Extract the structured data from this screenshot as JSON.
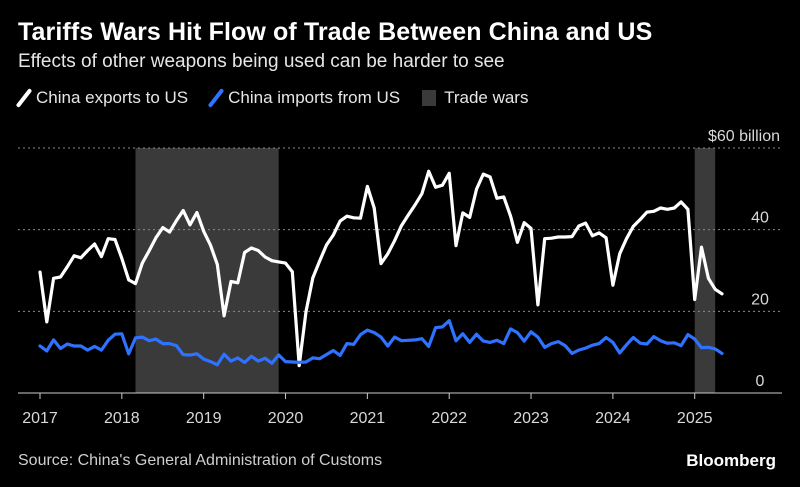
{
  "chart_data": {
    "type": "line",
    "title": "Tariffs Wars Hit Flow of Trade Between China and US",
    "subtitle": "Effects of other weapons being used can be harder to see",
    "xlabel": "",
    "ylabel": "",
    "xlim": [
      "2017-01",
      "2025-05"
    ],
    "ylim": [
      0,
      60
    ],
    "y_ticks": [
      0,
      20,
      40,
      60
    ],
    "y_tick_labels": [
      "0",
      "20",
      "40",
      "$60 billion"
    ],
    "x_tick_labels": [
      "2017",
      "2018",
      "2019",
      "2020",
      "2021",
      "2022",
      "2023",
      "2024",
      "2025"
    ],
    "grid": true,
    "legend_position": "top-left",
    "legend": [
      "China exports to US",
      "China imports from US",
      "Trade wars"
    ],
    "shaded_periods": [
      {
        "name": "Trade wars",
        "start": "2018-03",
        "end": "2019-12"
      },
      {
        "name": "Trade wars",
        "start": "2025-01",
        "end": "2025-04"
      }
    ],
    "dates": [
      "2017-01",
      "2017-02",
      "2017-03",
      "2017-04",
      "2017-05",
      "2017-06",
      "2017-07",
      "2017-08",
      "2017-09",
      "2017-10",
      "2017-11",
      "2017-12",
      "2018-01",
      "2018-02",
      "2018-03",
      "2018-04",
      "2018-05",
      "2018-06",
      "2018-07",
      "2018-08",
      "2018-09",
      "2018-10",
      "2018-11",
      "2018-12",
      "2019-01",
      "2019-02",
      "2019-03",
      "2019-04",
      "2019-05",
      "2019-06",
      "2019-07",
      "2019-08",
      "2019-09",
      "2019-10",
      "2019-11",
      "2019-12",
      "2020-01",
      "2020-02",
      "2020-03",
      "2020-04",
      "2020-05",
      "2020-06",
      "2020-07",
      "2020-08",
      "2020-09",
      "2020-10",
      "2020-11",
      "2020-12",
      "2021-01",
      "2021-02",
      "2021-03",
      "2021-04",
      "2021-05",
      "2021-06",
      "2021-07",
      "2021-08",
      "2021-09",
      "2021-10",
      "2021-11",
      "2021-12",
      "2022-01",
      "2022-02",
      "2022-03",
      "2022-04",
      "2022-05",
      "2022-06",
      "2022-07",
      "2022-08",
      "2022-09",
      "2022-10",
      "2022-11",
      "2022-12",
      "2023-01",
      "2023-02",
      "2023-03",
      "2023-04",
      "2023-05",
      "2023-06",
      "2023-07",
      "2023-08",
      "2023-09",
      "2023-10",
      "2023-11",
      "2023-12",
      "2024-01",
      "2024-02",
      "2024-03",
      "2024-04",
      "2024-05",
      "2024-06",
      "2024-07",
      "2024-08",
      "2024-09",
      "2024-10",
      "2024-11",
      "2024-12",
      "2025-01",
      "2025-02",
      "2025-03",
      "2025-04",
      "2025-05"
    ],
    "series": [
      {
        "name": "China exports to US",
        "color": "#ffffff",
        "values": [
          29.6,
          17.4,
          28.1,
          28.4,
          30.9,
          33.6,
          33.1,
          34.9,
          36.5,
          33.4,
          37.8,
          37.6,
          33.0,
          27.7,
          26.8,
          31.8,
          34.8,
          38.0,
          40.5,
          39.4,
          42.2,
          44.7,
          41.2,
          44.2,
          39.6,
          36.2,
          31.5,
          18.9,
          27.3,
          27.0,
          34.4,
          35.5,
          34.9,
          33.3,
          32.4,
          32.1,
          31.8,
          29.7,
          6.7,
          19.9,
          28.2,
          32.3,
          36.2,
          38.7,
          42.1,
          43.3,
          42.9,
          42.8,
          50.6,
          45.3,
          31.7,
          34.1,
          37.3,
          41.0,
          43.6,
          46.1,
          48.8,
          54.3,
          50.4,
          50.9,
          53.8,
          36.1,
          44.1,
          43.0,
          49.9,
          53.6,
          52.9,
          47.7,
          48.0,
          43.3,
          36.9,
          41.7,
          40.3,
          21.6,
          37.8,
          37.9,
          38.2,
          38.2,
          38.3,
          40.9,
          41.6,
          38.5,
          39.2,
          38.0,
          26.4,
          34.1,
          37.8,
          40.8,
          42.5,
          44.3,
          44.5,
          45.3,
          45.0,
          45.3,
          46.8,
          45.0,
          22.9,
          35.7,
          28.1,
          25.4,
          24.3
        ]
      },
      {
        "name": "China imports from US",
        "color": "#2f72ff",
        "values": [
          11.5,
          10.3,
          13.0,
          10.9,
          12.0,
          11.5,
          11.5,
          10.5,
          11.4,
          10.5,
          12.9,
          14.4,
          14.5,
          9.6,
          13.5,
          13.7,
          12.8,
          13.2,
          12.1,
          12.1,
          11.6,
          9.4,
          9.3,
          9.6,
          8.3,
          7.7,
          6.9,
          9.5,
          7.8,
          8.6,
          7.5,
          9.0,
          7.8,
          8.5,
          7.3,
          9.3,
          7.7,
          7.6,
          7.5,
          7.6,
          8.6,
          8.4,
          9.4,
          10.4,
          9.2,
          12.1,
          11.9,
          14.3,
          15.4,
          14.8,
          13.7,
          11.5,
          13.7,
          12.8,
          12.9,
          13.0,
          13.3,
          11.4,
          16.0,
          16.2,
          17.7,
          12.8,
          14.5,
          12.4,
          14.4,
          12.7,
          12.4,
          12.9,
          12.1,
          15.7,
          14.8,
          12.7,
          15.0,
          13.7,
          11.2,
          12.1,
          12.6,
          11.6,
          9.7,
          10.5,
          11.0,
          11.7,
          12.1,
          13.6,
          12.4,
          9.8,
          11.8,
          13.6,
          12.2,
          12.0,
          13.8,
          12.8,
          12.2,
          12.3,
          11.6,
          14.3,
          13.2,
          11.1,
          11.2,
          10.8,
          9.7
        ]
      }
    ]
  },
  "source": "Source: China's General Administration of Customs",
  "brand": "Bloomberg",
  "colors": {
    "background": "#000000",
    "shade": "#3a3a3a",
    "grid": "#8a8a8a",
    "axis_text": "#d9d9d9"
  }
}
